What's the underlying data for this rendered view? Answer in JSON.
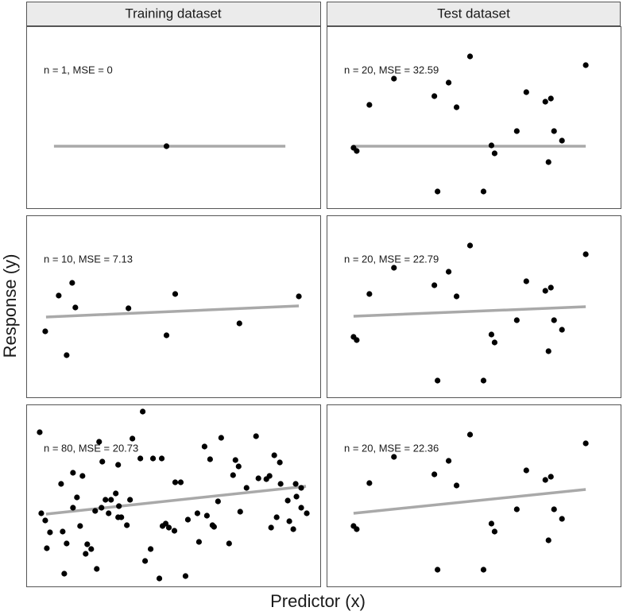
{
  "column_titles": [
    "Training dataset",
    "Test dataset"
  ],
  "xlabel": "Predictor (x)",
  "ylabel": "Response (y)",
  "chart_data": [
    {
      "type": "scatter",
      "annotation": "n = 1, MSE = 0",
      "color": "#000000",
      "line_color": "#a9a9a9",
      "xlim": [
        0,
        371
      ],
      "ylim": [
        0,
        230
      ],
      "x": [
        177
      ],
      "y": [
        79
      ],
      "line": {
        "x": [
          35,
          327
        ],
        "y": [
          79,
          79
        ]
      }
    },
    {
      "type": "scatter",
      "annotation": "n = 20, MSE = 32.59",
      "color": "#000000",
      "line_color": "#a9a9a9",
      "xlim": [
        0,
        371
      ],
      "ylim": [
        0,
        230
      ],
      "x": [
        181,
        327,
        85,
        154,
        54,
        136,
        164,
        252,
        283,
        276,
        240,
        287,
        297,
        34,
        38,
        208,
        212,
        280,
        140,
        198
      ],
      "y": [
        192,
        181,
        164,
        159,
        131,
        142,
        128,
        147,
        139,
        135,
        98,
        98,
        86,
        77,
        73,
        80,
        70,
        59,
        22,
        22
      ],
      "line": {
        "x": [
          34,
          327
        ],
        "y": [
          79,
          79
        ]
      }
    },
    {
      "type": "scatter",
      "annotation": "n = 10, MSE = 7.13",
      "color": "#000000",
      "line_color": "#a9a9a9",
      "xlim": [
        0,
        371
      ],
      "ylim": [
        0,
        230
      ],
      "x": [
        58,
        41,
        62,
        24,
        51,
        129,
        188,
        177,
        269,
        344
      ],
      "y": [
        145,
        129,
        114,
        84,
        54,
        113,
        131,
        79,
        94,
        128
      ],
      "line": {
        "x": [
          25,
          344
        ],
        "y": [
          102,
          116
        ]
      }
    },
    {
      "type": "scatter",
      "annotation": "n = 20, MSE = 22.79",
      "color": "#000000",
      "line_color": "#a9a9a9",
      "xlim": [
        0,
        371
      ],
      "ylim": [
        0,
        230
      ],
      "x": [
        181,
        327,
        85,
        154,
        54,
        136,
        164,
        252,
        283,
        276,
        240,
        287,
        297,
        34,
        38,
        208,
        212,
        280,
        140,
        198
      ],
      "y": [
        192,
        181,
        164,
        159,
        131,
        142,
        128,
        147,
        139,
        135,
        98,
        98,
        86,
        77,
        73,
        80,
        70,
        59,
        22,
        22
      ],
      "line": {
        "x": [
          34,
          327
        ],
        "y": [
          103,
          115
        ]
      }
    },
    {
      "type": "scatter",
      "annotation": "n = 80, MSE = 20.73",
      "color": "#000000",
      "line_color": "#a9a9a9",
      "xlim": [
        0,
        371
      ],
      "ylim": [
        0,
        230
      ],
      "x": [
        17,
        147,
        92,
        134,
        44,
        59,
        71,
        96,
        116,
        144,
        160,
        171,
        188,
        195,
        225,
        232,
        246,
        264,
        261,
        268,
        290,
        293,
        313,
        320,
        307,
        303,
        321,
        340,
        347,
        330,
        341,
        19,
        24,
        30,
        26,
        46,
        51,
        48,
        59,
        64,
        68,
        77,
        82,
        75,
        89,
        100,
        107,
        113,
        117,
        120,
        116,
        104,
        127,
        131,
        150,
        157,
        168,
        176,
        180,
        172,
        187,
        204,
        216,
        201,
        218,
        228,
        235,
        242,
        256,
        270,
        278,
        309,
        316,
        332,
        337,
        354,
        347,
        95,
        87,
        237
      ],
      "y": [
        195,
        221,
        183,
        187,
        130,
        144,
        140,
        158,
        154,
        162,
        162,
        162,
        132,
        132,
        177,
        161,
        188,
        160,
        141,
        152,
        190,
        137,
        166,
        157,
        140,
        136,
        130,
        130,
        125,
        109,
        114,
        93,
        84,
        69,
        49,
        70,
        55,
        17,
        100,
        113,
        77,
        54,
        48,
        42,
        23,
        110,
        110,
        118,
        102,
        88,
        88,
        93,
        78,
        110,
        33,
        48,
        11,
        80,
        75,
        77,
        71,
        85,
        93,
        14,
        57,
        90,
        78,
        108,
        55,
        95,
        125,
        75,
        88,
        83,
        73,
        93,
        100,
        100,
        96,
        76
      ],
      "line": {
        "x": [
          25,
          353
        ],
        "y": [
          92,
          127
        ]
      }
    },
    {
      "type": "scatter",
      "annotation": "n = 20, MSE = 22.36",
      "color": "#000000",
      "line_color": "#a9a9a9",
      "xlim": [
        0,
        371
      ],
      "ylim": [
        0,
        230
      ],
      "x": [
        181,
        327,
        85,
        154,
        54,
        136,
        164,
        252,
        283,
        276,
        240,
        287,
        297,
        34,
        38,
        208,
        212,
        280,
        140,
        198
      ],
      "y": [
        192,
        181,
        164,
        159,
        131,
        142,
        128,
        147,
        139,
        135,
        98,
        98,
        86,
        77,
        73,
        80,
        70,
        59,
        22,
        22
      ],
      "line": {
        "x": [
          34,
          327
        ],
        "y": [
          93,
          123
        ]
      }
    }
  ]
}
